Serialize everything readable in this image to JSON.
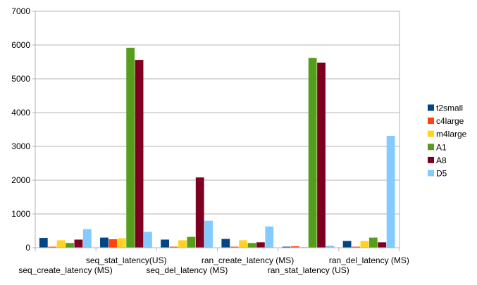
{
  "chart_data": {
    "type": "bar",
    "title": "",
    "xlabel": "",
    "ylabel": "",
    "ylim": [
      0,
      7000
    ],
    "yticks": [
      0,
      1000,
      2000,
      3000,
      4000,
      5000,
      6000,
      7000
    ],
    "grid": "horizontal",
    "legend_position": "right",
    "categories": [
      "seq_create_latency (MS)",
      "seq_stat_latency(US)",
      "seq_del_latency (MS)",
      "ran_create_latency (MS)",
      "ran_stat_latency (US)",
      "ran_del_latency (MS)"
    ],
    "series": [
      {
        "name": "t2small",
        "color": "#004586",
        "values": [
          290,
          300,
          240,
          260,
          30,
          200
        ]
      },
      {
        "name": "c4large",
        "color": "#ff420e",
        "values": [
          30,
          250,
          30,
          30,
          40,
          30
        ]
      },
      {
        "name": "m4large",
        "color": "#ffd320",
        "values": [
          220,
          280,
          220,
          220,
          20,
          200
        ]
      },
      {
        "name": "A1",
        "color": "#579d1c",
        "values": [
          140,
          5920,
          320,
          140,
          5620,
          300
        ]
      },
      {
        "name": "A8",
        "color": "#7e0021",
        "values": [
          240,
          5560,
          2080,
          160,
          5480,
          160
        ]
      },
      {
        "name": "D5",
        "color": "#83caff",
        "values": [
          550,
          470,
          800,
          630,
          60,
          3310
        ]
      }
    ]
  }
}
